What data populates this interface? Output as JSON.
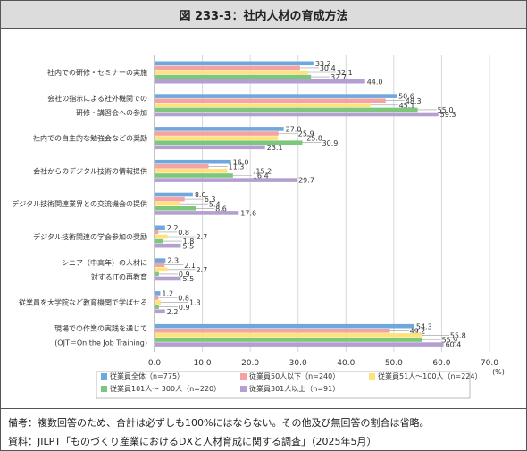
{
  "title": "図 233-3：社内人材の育成方法",
  "notes": [
    "備考：複数回答のため、合計は必ずしも100%にはならない。その他及び無回答の割合は省略。",
    "資料：JILPT「ものづくり産業におけるDXと人材育成に関する調査」（2025年5月）"
  ],
  "chart_data": {
    "type": "bar",
    "orientation": "horizontal",
    "categories": [
      [
        "社内での研修・セミナーの実施"
      ],
      [
        "会社の指示による社外機関での",
        "研修・講習会への参加"
      ],
      [
        "社内での自主的な勉強会などの奨励"
      ],
      [
        "会社からのデジタル技術の情報提供"
      ],
      [
        "デジタル技術関連業界との交流機会の提供"
      ],
      [
        "デジタル技術関連の学会参加の奨励"
      ],
      [
        "シニア（中高年）の人材に",
        "対するITの再教育"
      ],
      [
        "従業員を大学院など教育機関で学ばせる"
      ],
      [
        "現場での作業の実践を通じて",
        "(OJT＝On the Job Training)"
      ]
    ],
    "series": [
      {
        "name": "従業員全体（n=775）",
        "color": "#6fa8dc",
        "values": [
          33.2,
          50.6,
          27.0,
          16.0,
          8.0,
          2.2,
          2.3,
          1.2,
          54.3
        ]
      },
      {
        "name": "従業員50人以下（n=240）",
        "color": "#f4a3a3",
        "values": [
          30.4,
          48.3,
          25.9,
          11.3,
          6.3,
          0.8,
          2.1,
          0.8,
          49.2
        ]
      },
      {
        "name": "従業員51人〜100人（n=224）",
        "color": "#ffe27a",
        "values": [
          32.1,
          45.1,
          25.8,
          15.2,
          5.4,
          2.7,
          2.7,
          1.3,
          55.8
        ]
      },
      {
        "name": "従業員101人〜 300人（n=220）",
        "color": "#7dc77d",
        "values": [
          32.7,
          55.0,
          30.9,
          16.4,
          8.6,
          1.8,
          0.9,
          0.9,
          55.9
        ]
      },
      {
        "name": "従業員301人以上（n=91）",
        "color": "#b59fd1",
        "values": [
          44.0,
          59.3,
          23.1,
          29.7,
          17.6,
          5.5,
          5.5,
          2.2,
          60.4
        ]
      }
    ],
    "xlim": [
      0,
      70
    ],
    "xticks": [
      "0.0",
      "10.0",
      "20.0",
      "30.0",
      "40.0",
      "50.0",
      "60.0",
      "70.0"
    ],
    "xunit": "(%)",
    "legend_position": "bottom",
    "gridlines": true
  }
}
